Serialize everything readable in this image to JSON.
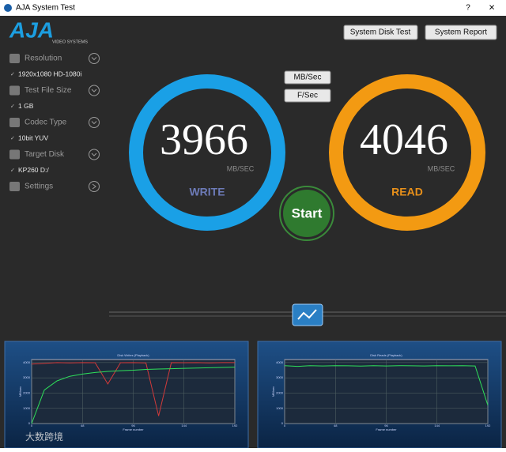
{
  "window": {
    "title": "AJA System Test",
    "help": "?",
    "close": "×"
  },
  "logo": {
    "brand": "AJA",
    "tagline": "VIDEO SYSTEMS"
  },
  "buttons": {
    "disk_test": "System Disk Test",
    "report": "System Report"
  },
  "sidebar": [
    {
      "label": "Resolution",
      "value": "1920x1080 HD-1080i"
    },
    {
      "label": "Test File Size",
      "value": "1 GB"
    },
    {
      "label": "Codec Type",
      "value": "10bit YUV"
    },
    {
      "label": "Target Disk",
      "value": "KP260 D:/"
    },
    {
      "label": "Settings"
    }
  ],
  "units": {
    "mb": "MB/Sec",
    "fps": "F/Sec"
  },
  "write": {
    "value": "3966",
    "unit": "MB/SEC",
    "label": "WRITE"
  },
  "read": {
    "value": "4046",
    "unit": "MB/SEC",
    "label": "READ"
  },
  "start": "Start",
  "watermark": "大数跨境",
  "graphs": [
    {
      "title": "Disk Writes (Playback)",
      "ylabel": "MB/sec",
      "xlabel": "Frame number",
      "x": [
        0,
        12,
        24,
        36,
        48,
        60,
        72,
        84,
        96,
        108,
        120,
        132,
        144,
        156,
        168,
        180,
        192
      ],
      "xlim": [
        0,
        192
      ],
      "ylim": [
        0,
        4200
      ],
      "xticks": [
        0,
        48,
        96,
        144,
        192
      ],
      "yticks": [
        0,
        1000,
        2000,
        3000,
        4000
      ],
      "series": [
        {
          "color": "#d23a3a",
          "values": [
            3900,
            3950,
            4000,
            3980,
            4000,
            3990,
            2600,
            3990,
            4000,
            3980,
            500,
            4000,
            3990,
            4000,
            3980,
            4000,
            4000
          ]
        },
        {
          "color": "#2ee05a",
          "values": [
            0,
            2200,
            2800,
            3100,
            3250,
            3350,
            3420,
            3470,
            3500,
            3550,
            3580,
            3600,
            3620,
            3640,
            3660,
            3680,
            3700
          ]
        }
      ]
    },
    {
      "title": "Disk Reads (Playback)",
      "ylabel": "MB/sec",
      "xlabel": "Frame number",
      "x": [
        0,
        12,
        24,
        36,
        48,
        60,
        72,
        84,
        96,
        108,
        120,
        132,
        144,
        156,
        168,
        180,
        192
      ],
      "xlim": [
        0,
        192
      ],
      "ylim": [
        0,
        4200
      ],
      "xticks": [
        0,
        48,
        96,
        144,
        192
      ],
      "yticks": [
        0,
        1000,
        2000,
        3000,
        4000
      ],
      "series": [
        {
          "color": "#2ee05a",
          "values": [
            3800,
            3750,
            3800,
            3780,
            3800,
            3790,
            3770,
            3800,
            3780,
            3800,
            3790,
            3780,
            3800,
            3790,
            3800,
            3780,
            1200
          ]
        }
      ]
    }
  ]
}
